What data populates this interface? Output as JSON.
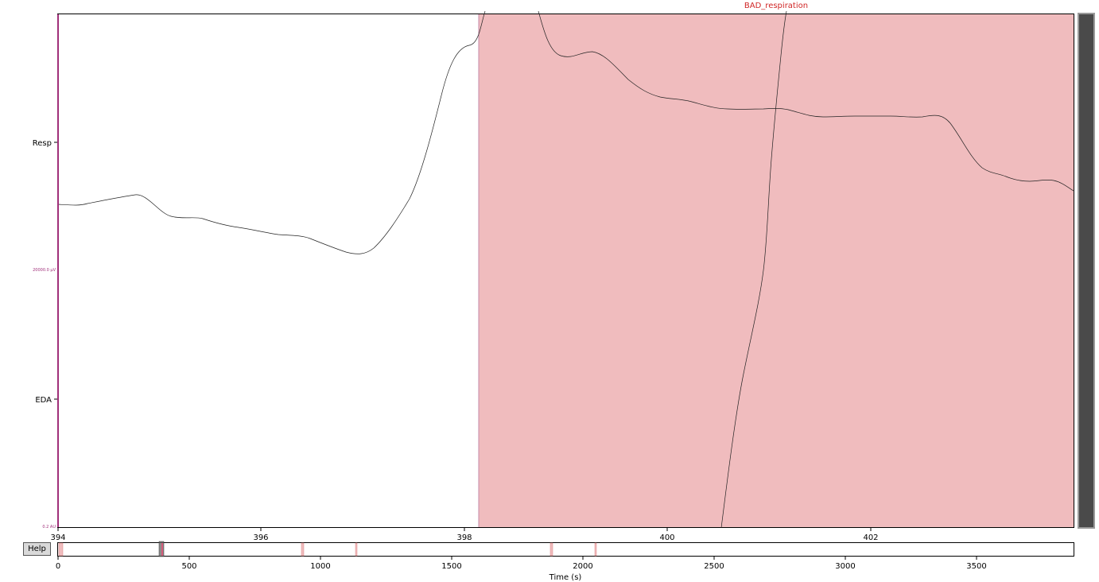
{
  "window": {
    "help_label": "Help"
  },
  "main_plot": {
    "annotation_label": "BAD_respiration",
    "channels": [
      "Resp",
      "EDA"
    ],
    "scale_labels": [
      "20000.0 µV",
      "0.2 AU"
    ],
    "x_ticks": [
      "394",
      "396",
      "398",
      "400",
      "402"
    ],
    "x_range": [
      394,
      404
    ],
    "bad_span": [
      398.13,
      404
    ]
  },
  "overview": {
    "x_ticks": [
      "0",
      "500",
      "1000",
      "1500",
      "2000",
      "2500",
      "3000",
      "3500"
    ],
    "xlabel": "Time (s)",
    "x_range": [
      0,
      3870
    ],
    "annotation_spans": [
      [
        5,
        20
      ],
      [
        935,
        942
      ],
      [
        1138,
        1145
      ],
      [
        1878,
        1885
      ],
      [
        2048,
        2055
      ]
    ],
    "view_window": [
      394,
      404
    ]
  },
  "colors": {
    "bad_annotation": "#f0bcbe",
    "annotation_text": "#d02626",
    "scale_bar": "#a0307a",
    "trace": "#000000",
    "scrollbar_thumb": "#4a4a4a"
  }
}
